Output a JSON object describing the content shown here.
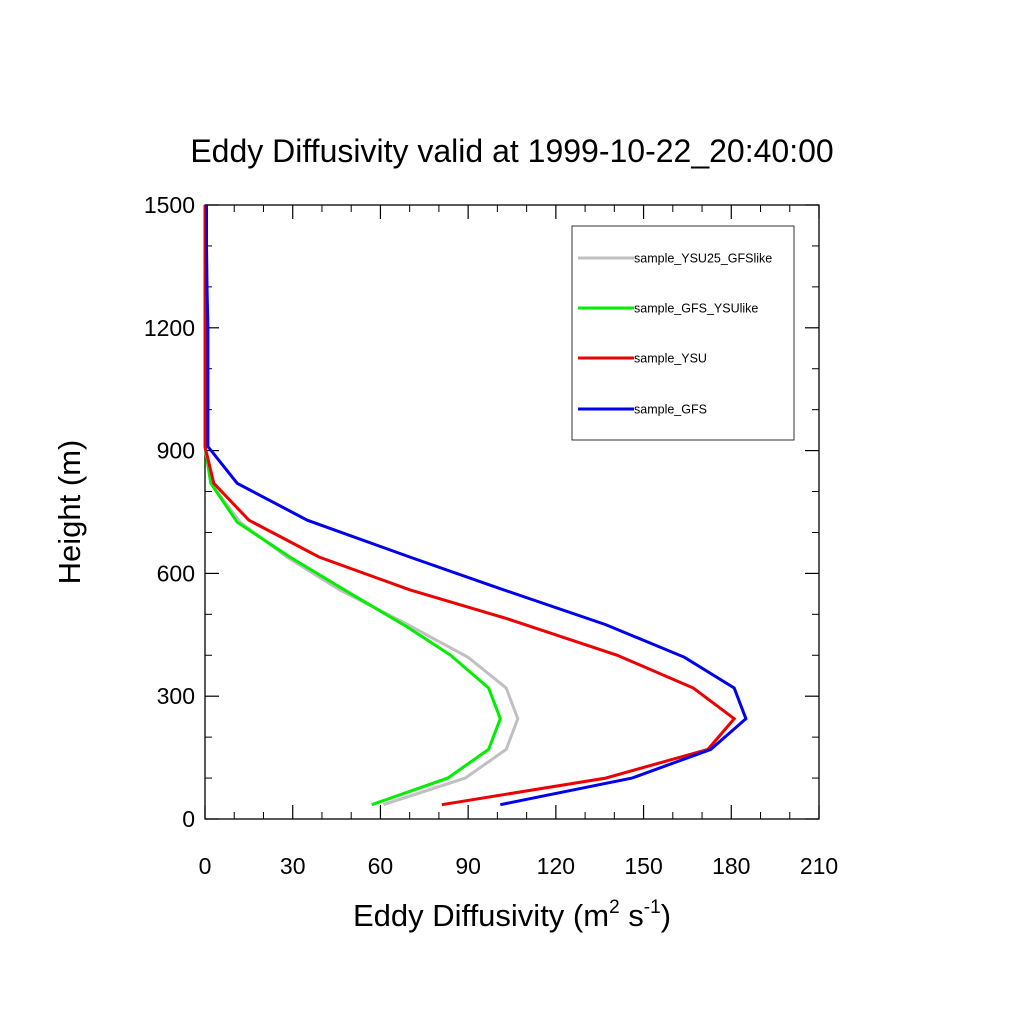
{
  "chart_data": {
    "type": "line",
    "title": "Eddy Diffusivity valid at 1999-10-22_20:40:00",
    "xlabel": {
      "base": "Eddy Diffusivity (m",
      "sup1": "2",
      "mid": " s",
      "sup2": "-1",
      "end": ")"
    },
    "ylabel": "Height (m)",
    "xlim": [
      0,
      210
    ],
    "ylim": [
      0,
      1500
    ],
    "xticks": [
      0,
      30,
      60,
      90,
      120,
      150,
      180,
      210
    ],
    "yticks": [
      0,
      300,
      600,
      900,
      1200,
      1500
    ],
    "grid": false,
    "legend_position": "top-right",
    "series": [
      {
        "name": "sample_YSU25_GFSlike",
        "color": "#c0c0c0",
        "points": [
          [
            61,
            35
          ],
          [
            89,
            100
          ],
          [
            103,
            170
          ],
          [
            107,
            245
          ],
          [
            103,
            320
          ],
          [
            90,
            395
          ],
          [
            68,
            480
          ],
          [
            46,
            560
          ],
          [
            28,
            640
          ],
          [
            12,
            725
          ],
          [
            2,
            820
          ],
          [
            0,
            910
          ],
          [
            0,
            1000
          ],
          [
            0,
            1100
          ],
          [
            0,
            1200
          ],
          [
            0,
            1300
          ],
          [
            0,
            1400
          ],
          [
            0,
            1500
          ]
        ]
      },
      {
        "name": "sample_GFS_YSUlike",
        "color": "#00ee00",
        "points": [
          [
            57,
            35
          ],
          [
            83,
            100
          ],
          [
            97,
            170
          ],
          [
            101,
            245
          ],
          [
            97,
            320
          ],
          [
            84,
            400
          ],
          [
            69,
            470
          ],
          [
            50,
            550
          ],
          [
            29,
            640
          ],
          [
            11,
            725
          ],
          [
            2,
            820
          ],
          [
            0,
            910
          ],
          [
            0,
            1000
          ],
          [
            0,
            1100
          ],
          [
            0,
            1200
          ],
          [
            0,
            1300
          ],
          [
            0,
            1400
          ],
          [
            0,
            1500
          ]
        ]
      },
      {
        "name": "sample_YSU",
        "color": "#ee0000",
        "points": [
          [
            81,
            35
          ],
          [
            137,
            100
          ],
          [
            172,
            170
          ],
          [
            181,
            245
          ],
          [
            167,
            320
          ],
          [
            141,
            400
          ],
          [
            103,
            490
          ],
          [
            70,
            560
          ],
          [
            39,
            640
          ],
          [
            15,
            730
          ],
          [
            3,
            820
          ],
          [
            0,
            910
          ],
          [
            0,
            1000
          ],
          [
            0,
            1100
          ],
          [
            0,
            1200
          ],
          [
            0,
            1300
          ],
          [
            0,
            1400
          ],
          [
            0,
            1500
          ]
        ]
      },
      {
        "name": "sample_GFS",
        "color": "#0000ee",
        "points": [
          [
            101,
            35
          ],
          [
            146,
            100
          ],
          [
            173,
            170
          ],
          [
            185,
            245
          ],
          [
            181,
            320
          ],
          [
            164,
            395
          ],
          [
            137,
            475
          ],
          [
            100,
            565
          ],
          [
            70,
            640
          ],
          [
            35,
            730
          ],
          [
            11,
            820
          ],
          [
            1,
            910
          ],
          [
            1,
            1000
          ],
          [
            1,
            1100
          ],
          [
            1,
            1200
          ],
          [
            0.7,
            1300
          ],
          [
            0.5,
            1400
          ],
          [
            0.5,
            1500
          ]
        ]
      }
    ]
  }
}
